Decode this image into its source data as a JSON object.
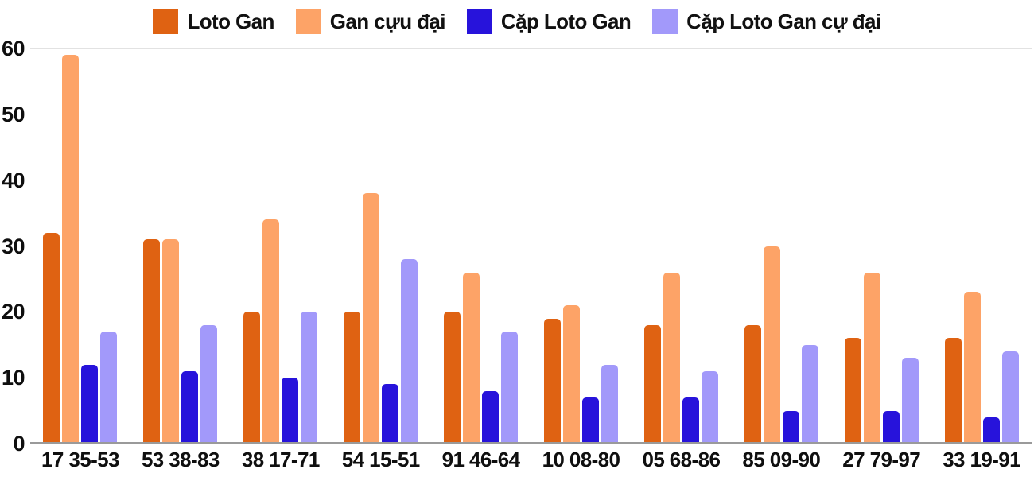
{
  "chart_data": {
    "type": "bar",
    "title": "",
    "xlabel": "",
    "ylabel": "",
    "ylim": [
      0,
      60
    ],
    "yticks": [
      0,
      10,
      20,
      30,
      40,
      50,
      60
    ],
    "grid": "horizontal",
    "legend_position": "top-center",
    "categories": [
      "17 35-53",
      "53 38-83",
      "38 17-71",
      "54 15-51",
      "91 46-64",
      "10 08-80",
      "05 68-86",
      "85 09-90",
      "27 79-97",
      "33 19-91"
    ],
    "series": [
      {
        "name": "Loto Gan",
        "color": "#DF6212",
        "values": [
          32,
          31,
          20,
          20,
          20,
          19,
          18,
          18,
          16,
          16
        ]
      },
      {
        "name": "Gan cựu đại",
        "color": "#FDA367",
        "values": [
          59,
          31,
          34,
          38,
          26,
          21,
          26,
          30,
          26,
          23
        ]
      },
      {
        "name": "Cặp Loto Gan",
        "color": "#2713DB",
        "values": [
          12,
          11,
          10,
          9,
          8,
          7,
          7,
          5,
          5,
          4
        ]
      },
      {
        "name": "Cặp Loto Gan cự đại",
        "color": "#A299FA",
        "values": [
          17,
          18,
          20,
          28,
          17,
          12,
          11,
          15,
          13,
          14
        ]
      }
    ],
    "colors": {
      "gridline": "#E2E2E2",
      "axis_line": "#9A9A9A",
      "text": "#0F0F0F",
      "background": "#FFFFFF"
    }
  }
}
